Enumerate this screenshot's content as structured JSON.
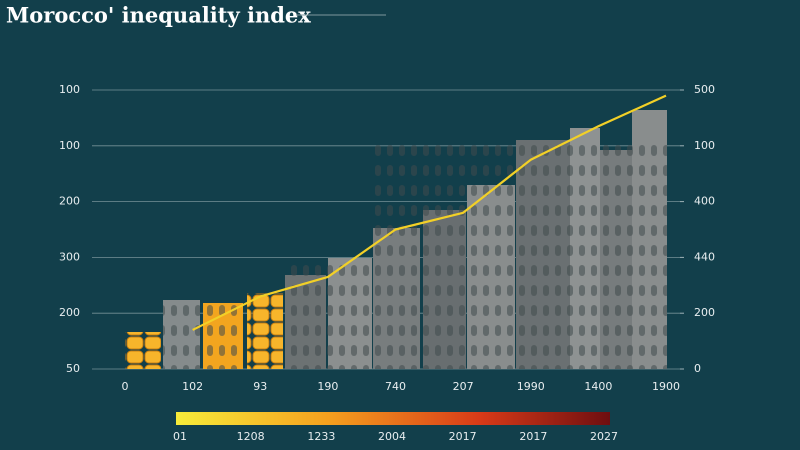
{
  "chart_data": {
    "type": "line",
    "title": "Morocco' inequality index",
    "categories": [
      "0",
      "102",
      "93",
      "190",
      "740",
      "207",
      "1990",
      "1400",
      "1900"
    ],
    "series": [
      {
        "name": null,
        "color": "#f2d027",
        "values": [
          null,
          0.7,
          1.3,
          1.65,
          2.5,
          2.8,
          3.75,
          4.35,
          4.9
        ]
      }
    ],
    "ylim": [
      0,
      5
    ],
    "yticks": [
      {
        "value": 0,
        "label": "50"
      },
      {
        "value": 1,
        "label": "200"
      },
      {
        "value": 2,
        "label": "300"
      },
      {
        "value": 3,
        "label": "200"
      },
      {
        "value": 4,
        "label": "100"
      },
      {
        "value": 5,
        "label": "100"
      }
    ],
    "y2lim": [
      0,
      5
    ],
    "y2ticks": [
      {
        "value": 0,
        "label": "0"
      },
      {
        "value": 1,
        "label": "200"
      },
      {
        "value": 2,
        "label": "440"
      },
      {
        "value": 3,
        "label": "400"
      },
      {
        "value": 4,
        "label": "100"
      },
      {
        "value": 5,
        "label": "500"
      }
    ],
    "grid": true,
    "color_scale_labels": [
      "01",
      "1208",
      "1233",
      "2004",
      "2017",
      "2017",
      "2027"
    ]
  }
}
